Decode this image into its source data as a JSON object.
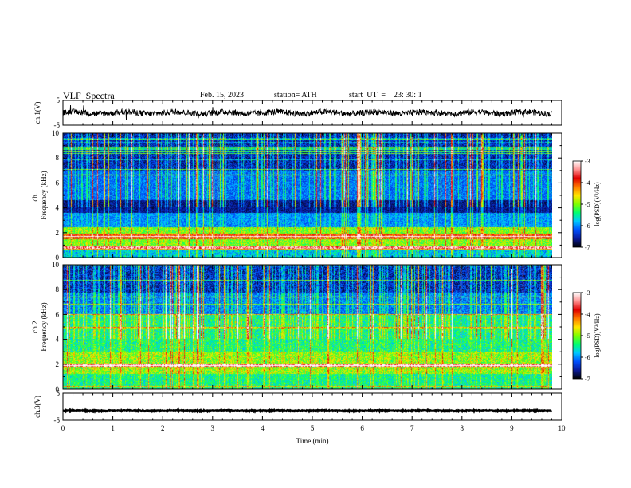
{
  "header": {
    "title": "VLF  Spectra",
    "date": "Feb. 15, 2023",
    "station": "station= ATH",
    "start": "start  UT  =    23: 30: 1"
  },
  "colors": {
    "colormap": [
      "#000000",
      "#0a1a9a",
      "#0050ff",
      "#00c8ff",
      "#00ff70",
      "#7fff00",
      "#ffe600",
      "#ff7a00",
      "#e00000",
      "#ff9090",
      "#ffffff"
    ],
    "waveform": "#000000",
    "axis": "#000000"
  },
  "chart_data": [
    {
      "type": "line",
      "panel": "ch1-waveform",
      "ylabel": "ch.1(V)",
      "ylim": [
        -5,
        5
      ],
      "yticks": [
        "5",
        "-5"
      ],
      "xlim": [
        0,
        10
      ],
      "series": [
        {
          "x_range": [
            0,
            9.8
          ],
          "level": 0,
          "amplitude": 1.2
        }
      ]
    },
    {
      "type": "heatmap",
      "panel": "ch1-spectrogram",
      "ylabel_lines": [
        "ch.1",
        "Frequency  (kHz)"
      ],
      "ylim": [
        0,
        10
      ],
      "yticks": [
        "0",
        "2",
        "4",
        "6",
        "8",
        "10"
      ],
      "xlim": [
        0,
        10
      ],
      "data_x_range": [
        0,
        9.8
      ],
      "colorbar": {
        "label": "log(PSD)(V²/Hz)",
        "range": [
          -7,
          -3
        ],
        "ticks": [
          "-3",
          "-4",
          "-5",
          "-6",
          "-7"
        ]
      }
    },
    {
      "type": "heatmap",
      "panel": "ch2-spectrogram",
      "ylabel_lines": [
        "ch.2",
        "Frequency  (kHz)"
      ],
      "ylim": [
        0,
        10
      ],
      "yticks": [
        "0",
        "2",
        "4",
        "6",
        "8",
        "10"
      ],
      "xlim": [
        0,
        10
      ],
      "data_x_range": [
        0,
        9.8
      ],
      "colorbar": {
        "label": "log(PSD)(V²/Hz)",
        "range": [
          -7,
          -3
        ],
        "ticks": [
          "-3",
          "-4",
          "-5",
          "-6",
          "-7"
        ]
      }
    },
    {
      "type": "line",
      "panel": "ch3-waveform",
      "ylabel": "ch.3(V)",
      "ylim": [
        -5,
        5
      ],
      "yticks": [
        "5",
        "-5"
      ],
      "xlim": [
        0,
        10
      ],
      "xlabel": "Time  (min)",
      "xticks": [
        "0",
        "1",
        "2",
        "3",
        "4",
        "5",
        "6",
        "7",
        "8",
        "9",
        "10"
      ],
      "series": [
        {
          "x_range": [
            0,
            9.8
          ],
          "level": -1.5,
          "amplitude": 0.15
        }
      ]
    }
  ]
}
